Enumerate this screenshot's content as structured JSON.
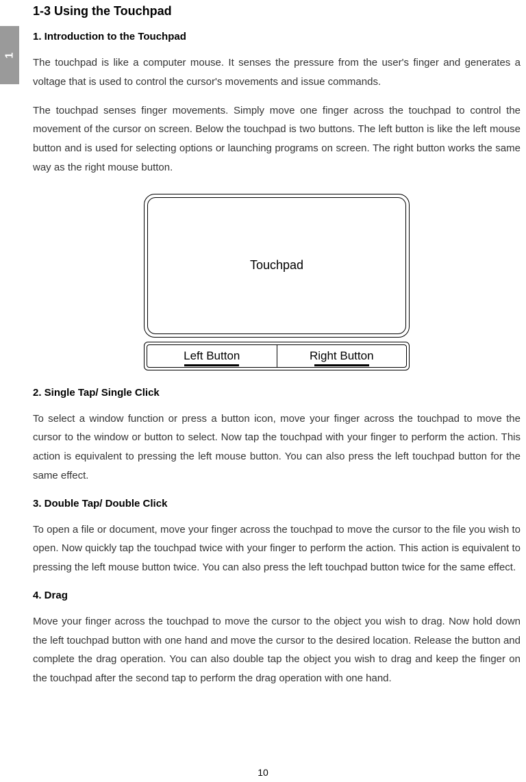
{
  "tab_number": "1",
  "section_title": "1-3 Using the Touchpad",
  "h1": "1. Introduction to the Touchpad",
  "p1": "The touchpad is like a computer mouse. It senses the pressure from the user's finger and generates a voltage that is used to control the cursor's movements and issue commands.",
  "p2": "The touchpad senses finger movements. Simply move one finger across the touchpad to control the movement of the cursor on screen. Below the touchpad is two buttons. The left button is like the left mouse button and is used for selecting options or launching programs on screen. The right button works the same way as the right mouse button.",
  "diagram": {
    "touchpad_label": "Touchpad",
    "left_button_label": "Left Button",
    "right_button_label": "Right Button"
  },
  "h2": "2. Single Tap/ Single Click",
  "p3": "To select a window function or press a button icon, move your finger across the touchpad to move the cursor to the window or button to select. Now tap the touchpad with your finger to perform the action. This action is equivalent to pressing the left mouse button. You can also press the left touchpad button for the same effect.",
  "h3": "3. Double Tap/ Double Click",
  "p4": "To open a file or document, move your finger across the touchpad to move the cursor to the file you wish to open. Now quickly tap the touchpad twice with your finger to perform the action. This action is equivalent to pressing the left mouse button twice. You can also press the left touchpad button twice for the same effect.",
  "h4": "4. Drag",
  "p5": "Move your finger across the touchpad to move the cursor to the object you wish to drag. Now hold down the left touchpad button with one hand and move the cursor to the desired location. Release the button and complete the drag operation. You can also double tap the object you wish to drag and keep the finger on the touchpad after the second tap to perform the drag operation with one hand.",
  "page_number": "10"
}
